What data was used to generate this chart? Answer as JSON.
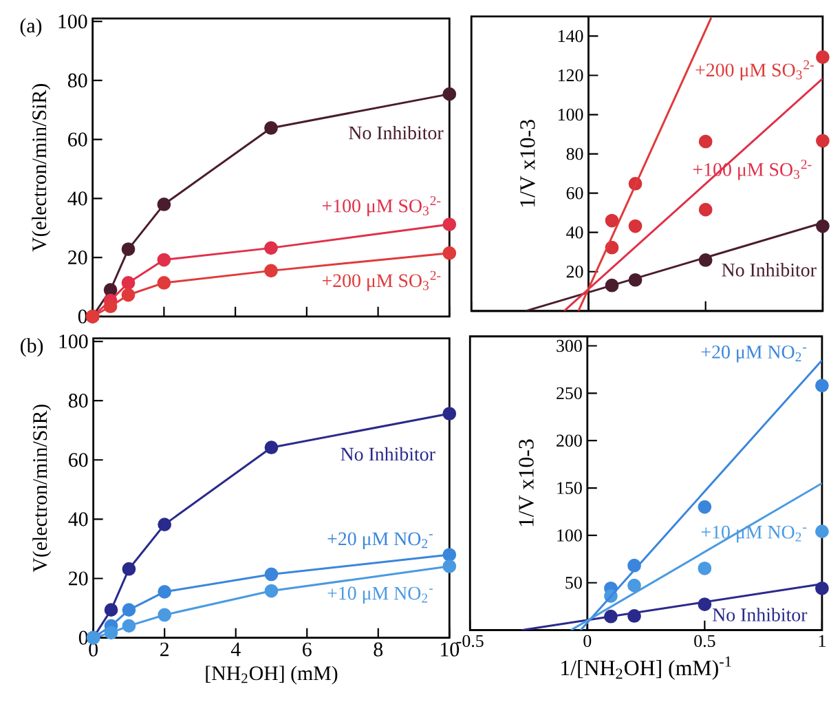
{
  "chart_data": [
    {
      "type": "line",
      "marker": "circle",
      "ylabel": "V(electron/min/SiR)",
      "x": [
        0,
        0.5,
        1,
        2,
        5,
        10
      ],
      "xlim": [
        0,
        10
      ],
      "xticks": [
        0,
        2,
        4,
        6,
        8,
        10
      ],
      "ylim": [
        0,
        101
      ],
      "yticks": [
        0,
        20,
        40,
        60,
        80,
        100
      ],
      "tick_labels": "y",
      "series": [
        {
          "name": "No Inhibitor",
          "color": "#4a1d2e",
          "values": [
            0,
            9.0,
            22.8,
            38.0,
            63.9,
            75.4
          ]
        },
        {
          "name": "+100 μM SO$_{3}$$^{2-}$",
          "color": "#e0304a",
          "values": [
            0,
            5.4,
            11.4,
            19.2,
            23.2,
            31.2
          ]
        },
        {
          "name": "+200 μM SO$_{3}$$^{2-}$",
          "color": "#e03a3a",
          "values": [
            0,
            3.4,
            7.3,
            11.4,
            15.5,
            21.5
          ]
        }
      ],
      "annotations": [
        "(a)"
      ]
    },
    {
      "type": "scatter",
      "marker": "circle",
      "ylabel": "1/V x10-3",
      "x": [
        0.1,
        0.2,
        0.5,
        1
      ],
      "xlim": [
        -0.5,
        1
      ],
      "xticks": [
        -0.5,
        0,
        0.5,
        1
      ],
      "ylim": [
        0,
        150
      ],
      "yticks": [
        20,
        40,
        60,
        80,
        100,
        120,
        140
      ],
      "tick_labels": "y",
      "series": [
        {
          "color": "#4a1d2e",
          "values": [
            13,
            15.8,
            25.9,
            43.2
          ]
        },
        {
          "color": "#d8323a",
          "values": [
            32.3,
            43.2,
            51.6,
            86.7
          ]
        },
        {
          "color": "#d8323a",
          "values": [
            46,
            64.8,
            86.3,
            129.3
          ]
        },
        {
          "type": "line",
          "marker": "none",
          "name": "No Inhibitor",
          "color": "#4a1d2e",
          "x": [
            -0.268,
            1
          ],
          "values": [
            0,
            44.9
          ]
        },
        {
          "type": "line",
          "marker": "none",
          "name": "+100 μM SO$_{3}$$^{2-}$",
          "color": "#e0304a",
          "x": [
            -0.104,
            1
          ],
          "values": [
            0,
            118.4
          ]
        },
        {
          "type": "line",
          "marker": "none",
          "name": "+200 μM SO$_{3}$$^{2-}$",
          "color": "#e03a3a",
          "x": [
            -0.043,
            0.524
          ],
          "values": [
            0,
            149.4
          ]
        }
      ]
    },
    {
      "type": "line",
      "marker": "circle",
      "xlabel": "[NH$_{2}$OH] (mM)",
      "ylabel": "V(electron/min/SiR)",
      "x": [
        0,
        0.5,
        1,
        2,
        5,
        10
      ],
      "xlim": [
        0,
        10
      ],
      "xticks": [
        0,
        2,
        4,
        6,
        8,
        10
      ],
      "ylim": [
        0,
        101
      ],
      "yticks": [
        0,
        20,
        40,
        60,
        80,
        100
      ],
      "series": [
        {
          "name": "No Inhibitor",
          "color": "#2a2a8c",
          "values": [
            0,
            9.4,
            23.2,
            38.2,
            64.2,
            75.6
          ]
        },
        {
          "name": "+20 μM NO$_{2}$$^{-}$",
          "color": "#3a86dc",
          "values": [
            0,
            4.0,
            9.4,
            15.5,
            21.4,
            28.0
          ]
        },
        {
          "name": "+10 μM NO$_{2}$$^{-}$",
          "color": "#4a9ae2",
          "values": [
            0,
            1.7,
            4.0,
            7.7,
            15.8,
            24.1
          ]
        }
      ],
      "annotations": [
        "(b)"
      ]
    },
    {
      "type": "scatter",
      "marker": "circle",
      "xlabel": "1/[NH$_{2}$OH] (mM)$^{-1}$",
      "ylabel": "1/V x10-3",
      "x": [
        0.1,
        0.2,
        0.5,
        1
      ],
      "xlim": [
        -0.5,
        1
      ],
      "xticks": [
        -0.5,
        0,
        0.5,
        1
      ],
      "ylim": [
        0,
        310
      ],
      "yticks": [
        50,
        100,
        150,
        200,
        250,
        300
      ],
      "series": [
        {
          "color": "#2a2a8c",
          "values": [
            14.5,
            15,
            27.3,
            44.2
          ]
        },
        {
          "color": "#3a86dc",
          "values": [
            44.2,
            68.2,
            130,
            258
          ]
        },
        {
          "color": "#4a9ae2",
          "values": [
            36,
            47.2,
            65.2,
            104.2
          ]
        },
        {
          "type": "line",
          "marker": "none",
          "name": "No Inhibitor",
          "color": "#2a2a8c",
          "x": [
            -0.28,
            1
          ],
          "values": [
            0,
            48.8
          ]
        },
        {
          "type": "line",
          "marker": "none",
          "name": "+20 μM NO$_{2}$$^{-}$",
          "color": "#3a86dc",
          "x": [
            -0.029,
            1
          ],
          "values": [
            0,
            284.8
          ]
        },
        {
          "type": "line",
          "marker": "none",
          "name": "+10 μM NO$_{2}$$^{-}$",
          "color": "#4a9ae2",
          "x": [
            -0.07,
            1
          ],
          "values": [
            0,
            155
          ]
        }
      ]
    }
  ]
}
